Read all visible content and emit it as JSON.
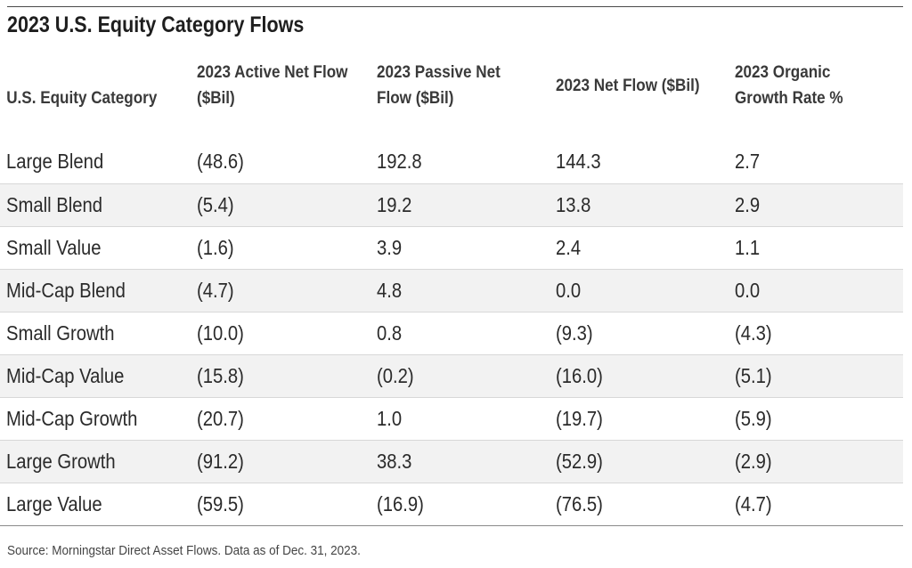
{
  "title": "2023 U.S. Equity Category Flows",
  "columns": [
    "U.S. Equity Category",
    "2023 Active Net Flow ($Bil)",
    "2023 Passive Net Flow ($Bil)",
    "2023 Net Flow ($Bil)",
    "2023 Organic Growth Rate %"
  ],
  "rows": [
    [
      "Large Blend",
      "(48.6)",
      "192.8",
      "144.3",
      "2.7"
    ],
    [
      "Small Blend",
      "(5.4)",
      "19.2",
      "13.8",
      "2.9"
    ],
    [
      "Small Value",
      "(1.6)",
      "3.9",
      "2.4",
      "1.1"
    ],
    [
      "Mid-Cap Blend",
      "(4.7)",
      "4.8",
      "0.0",
      "0.0"
    ],
    [
      "Small Growth",
      "(10.0)",
      "0.8",
      "(9.3)",
      "(4.3)"
    ],
    [
      "Mid-Cap Value",
      "(15.8)",
      "(0.2)",
      "(16.0)",
      "(5.1)"
    ],
    [
      "Mid-Cap Growth",
      "(20.7)",
      "1.0",
      "(19.7)",
      "(5.9)"
    ],
    [
      "Large Growth",
      "(91.2)",
      "38.3",
      "(52.9)",
      "(2.9)"
    ],
    [
      "Large Value",
      "(59.5)",
      "(16.9)",
      "(76.5)",
      "(4.7)"
    ]
  ],
  "source": "Source: Morningstar Direct Asset Flows. Data as of Dec. 31, 2023."
}
